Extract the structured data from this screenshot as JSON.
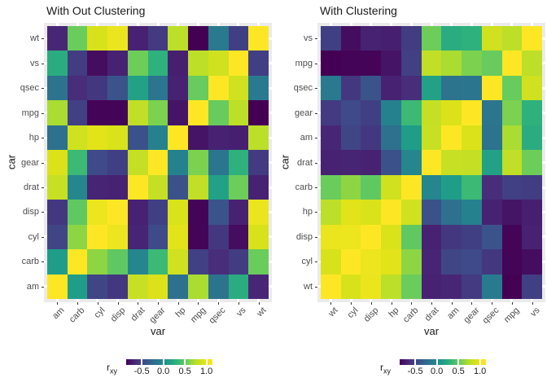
{
  "theme": {
    "background": "#FFFFFF",
    "panel_bg": "#EBEBEB",
    "grid_color": "#FFFFFF",
    "axis_text_color": "#4D4D4D",
    "axis_title_color": "#1A1A1A",
    "title_color": "#1A1A1A",
    "tick_color": "#333333"
  },
  "colorbar": {
    "title_main": "r",
    "title_sub": "xy",
    "tick_values": [
      -0.5,
      0.0,
      0.5,
      1.0
    ],
    "tick_labels": [
      "-0.5",
      "0.0",
      "0.5",
      "1.0"
    ]
  },
  "scale": {
    "palette": "viridis",
    "min": -0.868,
    "max": 1.0,
    "viridis_stops": [
      "#440154",
      "#482878",
      "#3E4A89",
      "#31688E",
      "#26828E",
      "#1F9E89",
      "#35B779",
      "#6DCD59",
      "#B4DE2C",
      "#DFE318",
      "#FDE725"
    ]
  },
  "correlation": {
    "vars": [
      "mpg",
      "cyl",
      "disp",
      "hp",
      "drat",
      "wt",
      "qsec",
      "vs",
      "am",
      "gear",
      "carb"
    ],
    "matrix": [
      [
        1.0,
        -0.852,
        -0.848,
        -0.776,
        0.681,
        -0.868,
        0.419,
        0.664,
        0.6,
        0.48,
        -0.551
      ],
      [
        -0.852,
        1.0,
        0.902,
        0.832,
        -0.7,
        0.782,
        -0.591,
        -0.811,
        -0.523,
        -0.493,
        0.527
      ],
      [
        -0.848,
        0.902,
        1.0,
        0.791,
        -0.71,
        0.888,
        -0.434,
        -0.71,
        -0.591,
        -0.556,
        0.395
      ],
      [
        -0.776,
        0.832,
        0.791,
        1.0,
        -0.449,
        0.659,
        -0.708,
        -0.723,
        -0.243,
        -0.126,
        0.75
      ],
      [
        0.681,
        -0.7,
        -0.71,
        -0.449,
        1.0,
        -0.712,
        0.091,
        0.44,
        0.713,
        0.7,
        -0.091
      ],
      [
        -0.868,
        0.782,
        0.888,
        0.659,
        -0.712,
        1.0,
        -0.175,
        -0.555,
        -0.692,
        -0.583,
        0.428
      ],
      [
        0.419,
        -0.591,
        -0.434,
        -0.708,
        0.091,
        -0.175,
        1.0,
        0.745,
        -0.23,
        -0.213,
        -0.656
      ],
      [
        0.664,
        -0.811,
        -0.71,
        -0.723,
        0.44,
        -0.555,
        0.745,
        1.0,
        0.168,
        0.206,
        -0.57
      ],
      [
        0.6,
        -0.523,
        -0.591,
        -0.243,
        0.713,
        -0.692,
        -0.23,
        0.168,
        1.0,
        0.794,
        0.058
      ],
      [
        0.48,
        -0.493,
        -0.556,
        -0.126,
        0.7,
        -0.583,
        -0.213,
        0.206,
        0.794,
        1.0,
        0.274
      ],
      [
        -0.551,
        0.527,
        0.395,
        0.75,
        -0.091,
        0.428,
        -0.656,
        -0.57,
        0.058,
        0.274,
        1.0
      ]
    ]
  },
  "chart_data": [
    {
      "type": "heatmap",
      "title": "With Out Clustering",
      "xlabel": "var",
      "ylabel": "car",
      "values_source": "correlation.matrix",
      "x_order": [
        "am",
        "carb",
        "cyl",
        "disp",
        "drat",
        "gear",
        "hp",
        "mpg",
        "qsec",
        "vs",
        "wt"
      ],
      "y_order_top_to_bottom": [
        "wt",
        "vs",
        "qsec",
        "mpg",
        "hp",
        "gear",
        "drat",
        "disp",
        "cyl",
        "carb",
        "am"
      ],
      "legend_position": "bottom"
    },
    {
      "type": "heatmap",
      "title": "With Clustering",
      "xlabel": "var",
      "ylabel": "car",
      "values_source": "correlation.matrix",
      "x_order": [
        "wt",
        "cyl",
        "disp",
        "hp",
        "carb",
        "drat",
        "am",
        "gear",
        "qsec",
        "mpg",
        "vs"
      ],
      "y_order_top_to_bottom": [
        "vs",
        "mpg",
        "qsec",
        "gear",
        "am",
        "drat",
        "carb",
        "hp",
        "disp",
        "cyl",
        "wt"
      ],
      "legend_position": "bottom"
    }
  ]
}
